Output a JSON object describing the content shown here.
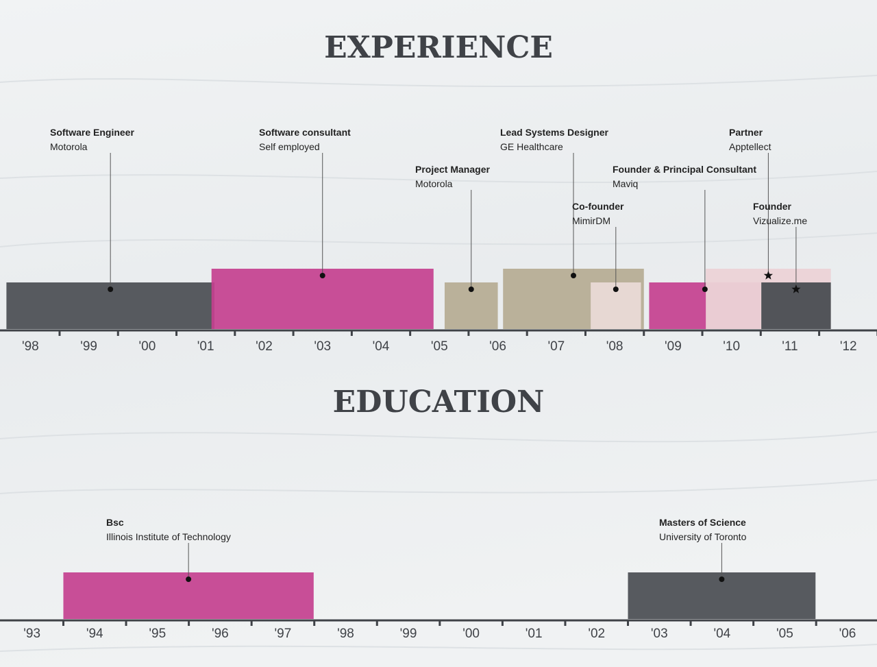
{
  "chart_data": [
    {
      "type": "timeline",
      "title": "EXPERIENCE",
      "xlim": [
        1997.48,
        2012.49
      ],
      "xticks": [
        {
          "value": 1998,
          "label": "'98"
        },
        {
          "value": 1999,
          "label": "'99"
        },
        {
          "value": 2000,
          "label": "'00"
        },
        {
          "value": 2001,
          "label": "'01"
        },
        {
          "value": 2002,
          "label": "'02"
        },
        {
          "value": 2003,
          "label": "'03"
        },
        {
          "value": 2004,
          "label": "'04"
        },
        {
          "value": 2005,
          "label": "'05"
        },
        {
          "value": 2006,
          "label": "'06"
        },
        {
          "value": 2007,
          "label": "'07"
        },
        {
          "value": 2008,
          "label": "'08"
        },
        {
          "value": 2009,
          "label": "'09"
        },
        {
          "value": 2010,
          "label": "'10"
        },
        {
          "value": 2011,
          "label": "'11"
        },
        {
          "value": 2012,
          "label": "'12"
        }
      ],
      "items": [
        {
          "name": "Software Engineer",
          "org": "Motorola",
          "start": 1997.59,
          "end": 2001.15,
          "color": "#4a4d52",
          "level": 1
        },
        {
          "name": "Software consultant",
          "org": "Self employed",
          "start": 2001.1,
          "end": 2004.9,
          "color": "#c4408f",
          "level": 2
        },
        {
          "name": "Project Manager",
          "org": "Motorola",
          "start": 2005.09,
          "end": 2006.0,
          "color": "#b5ab93",
          "level": 1
        },
        {
          "name": "Lead Systems Designer",
          "org": "GE Healthcare",
          "start": 2006.09,
          "end": 2008.5,
          "color": "#b5ab93",
          "level": 2
        },
        {
          "name": "Co-founder",
          "org": "MimirDM",
          "start": 2007.59,
          "end": 2008.45,
          "color": "#eadbd8",
          "level": 1
        },
        {
          "name": "Founder & Principal Consultant",
          "org": "Maviq",
          "start": 2008.59,
          "end": 2010.5,
          "color": "#c4408f",
          "level": 1
        },
        {
          "name": "Partner",
          "org": "Apptellect",
          "start": 2009.56,
          "end": 2011.7,
          "color": "#ecd3d6",
          "level": 2,
          "marker": "star"
        },
        {
          "name": "Founder",
          "org": "Vizualize.me",
          "start": 2010.51,
          "end": 2011.7,
          "color": "#4a4d52",
          "level": 1,
          "marker": "star"
        }
      ]
    },
    {
      "type": "timeline",
      "title": "EDUCATION",
      "xlim": [
        1992.49,
        2006.47
      ],
      "xticks": [
        {
          "value": 1993,
          "label": "'93"
        },
        {
          "value": 1994,
          "label": "'94"
        },
        {
          "value": 1995,
          "label": "'95"
        },
        {
          "value": 1996,
          "label": "'96"
        },
        {
          "value": 1997,
          "label": "'97"
        },
        {
          "value": 1998,
          "label": "'98"
        },
        {
          "value": 1999,
          "label": "'99"
        },
        {
          "value": 2000,
          "label": "'00"
        },
        {
          "value": 2001,
          "label": "'01"
        },
        {
          "value": 2002,
          "label": "'02"
        },
        {
          "value": 2003,
          "label": "'03"
        },
        {
          "value": 2004,
          "label": "'04"
        },
        {
          "value": 2005,
          "label": "'05"
        },
        {
          "value": 2006,
          "label": "'06"
        }
      ],
      "items": [
        {
          "name": "Bsc",
          "org": "Illinois Institute of Technology",
          "start": 1993.5,
          "end": 1997.49,
          "color": "#c4408f",
          "level": 1
        },
        {
          "name": "Masters of Science",
          "org": "University of Toronto",
          "start": 2002.5,
          "end": 2005.49,
          "color": "#4a4d52",
          "level": 1
        }
      ]
    }
  ]
}
